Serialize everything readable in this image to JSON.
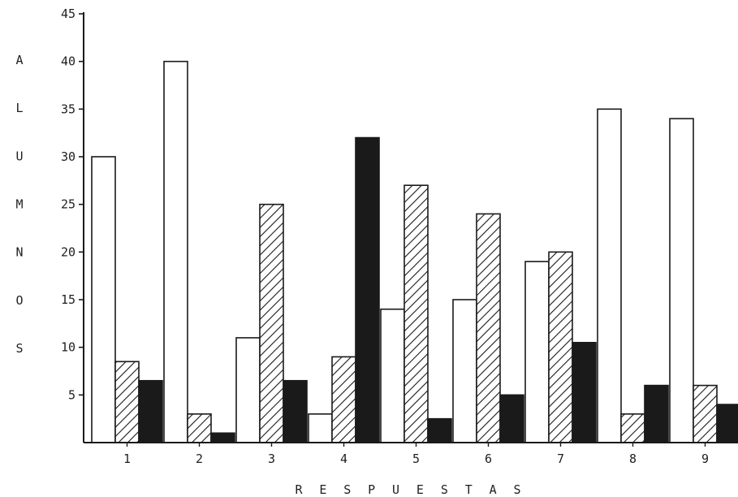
{
  "chart_data": {
    "type": "bar",
    "title": "",
    "xlabel": "R E S P U E S T A S",
    "ylabel": "A L U M N O S",
    "ylim": [
      0,
      45
    ],
    "yticks": [
      "5",
      "10",
      "15",
      "20",
      "25",
      "30",
      "35",
      "40",
      "45"
    ],
    "categories": [
      "1",
      "2",
      "3",
      "4",
      "5",
      "6",
      "7",
      "8",
      "9"
    ],
    "series": [
      {
        "values": [
          30,
          40,
          11,
          3,
          14,
          15,
          19,
          35,
          34
        ],
        "fill": "white"
      },
      {
        "values": [
          8.5,
          3,
          25,
          9,
          27,
          24,
          20,
          3,
          6
        ],
        "fill": "hatched"
      },
      {
        "values": [
          6.5,
          1,
          6.5,
          32,
          2.5,
          5,
          10.5,
          6,
          4
        ],
        "fill": "black"
      }
    ],
    "grid": false,
    "legend": "none"
  },
  "colors": {
    "ink": "#1a1a1a",
    "paper": "#ffffff"
  }
}
